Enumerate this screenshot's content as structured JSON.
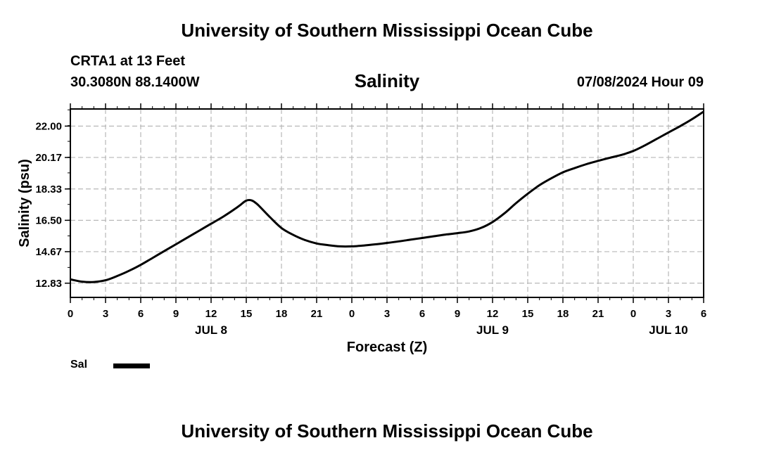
{
  "header": {
    "title": "University of Southern Mississippi Ocean Cube",
    "station": "CRTA1 at 13 Feet",
    "coords": "30.3080N  88.1400W",
    "datetime": "07/08/2024 Hour 09"
  },
  "footer": {
    "title": "University of Southern Mississippi Ocean Cube"
  },
  "legend": {
    "label": "Sal",
    "color": "#000000"
  },
  "chart_data": {
    "type": "line",
    "title": "Salinity",
    "xlabel": "Forecast (Z)",
    "ylabel": "Salinity (psu)",
    "xlim": [
      0,
      54
    ],
    "ylim": [
      12.0,
      23.0
    ],
    "yticks": [
      12.83,
      14.67,
      16.5,
      18.33,
      20.17,
      22.0
    ],
    "ytick_labels": [
      "12.83",
      "14.67",
      "16.50",
      "18.33",
      "20.17",
      "22.00"
    ],
    "xticks": [
      0,
      3,
      6,
      9,
      12,
      15,
      18,
      21,
      24,
      27,
      30,
      33,
      36,
      39,
      42,
      45,
      48,
      51,
      54
    ],
    "xtick_labels": [
      "0",
      "3",
      "6",
      "9",
      "12",
      "15",
      "18",
      "21",
      "0",
      "3",
      "6",
      "9",
      "12",
      "15",
      "18",
      "21",
      "0",
      "3",
      "6"
    ],
    "date_labels": [
      {
        "x": 12,
        "label": "JUL 8"
      },
      {
        "x": 36,
        "label": "JUL 9"
      },
      {
        "x": 51,
        "label": "JUL 10"
      }
    ],
    "grid": true,
    "series": [
      {
        "name": "Sal",
        "color": "#000000",
        "x": [
          0,
          1,
          2,
          3,
          4,
          5,
          6,
          7,
          8,
          9,
          10,
          11,
          12,
          13,
          14,
          14.5,
          15,
          15.5,
          16,
          17,
          18,
          19,
          20,
          21,
          22,
          23,
          24,
          25,
          26,
          27,
          28,
          29,
          30,
          31,
          32,
          33,
          34,
          35,
          36,
          37,
          38,
          39,
          40,
          41,
          42,
          43,
          44,
          45,
          46,
          47,
          48,
          49,
          50,
          51,
          52,
          53,
          54
        ],
        "y": [
          13.05,
          12.92,
          12.9,
          13.0,
          13.25,
          13.55,
          13.9,
          14.3,
          14.7,
          15.1,
          15.5,
          15.9,
          16.3,
          16.7,
          17.15,
          17.4,
          17.65,
          17.65,
          17.4,
          16.7,
          16.05,
          15.65,
          15.35,
          15.15,
          15.05,
          14.98,
          14.98,
          15.03,
          15.1,
          15.18,
          15.27,
          15.37,
          15.47,
          15.57,
          15.67,
          15.75,
          15.85,
          16.05,
          16.4,
          16.9,
          17.5,
          18.05,
          18.55,
          18.95,
          19.3,
          19.55,
          19.78,
          19.97,
          20.15,
          20.32,
          20.55,
          20.88,
          21.25,
          21.63,
          22.0,
          22.4,
          22.85
        ]
      }
    ]
  }
}
